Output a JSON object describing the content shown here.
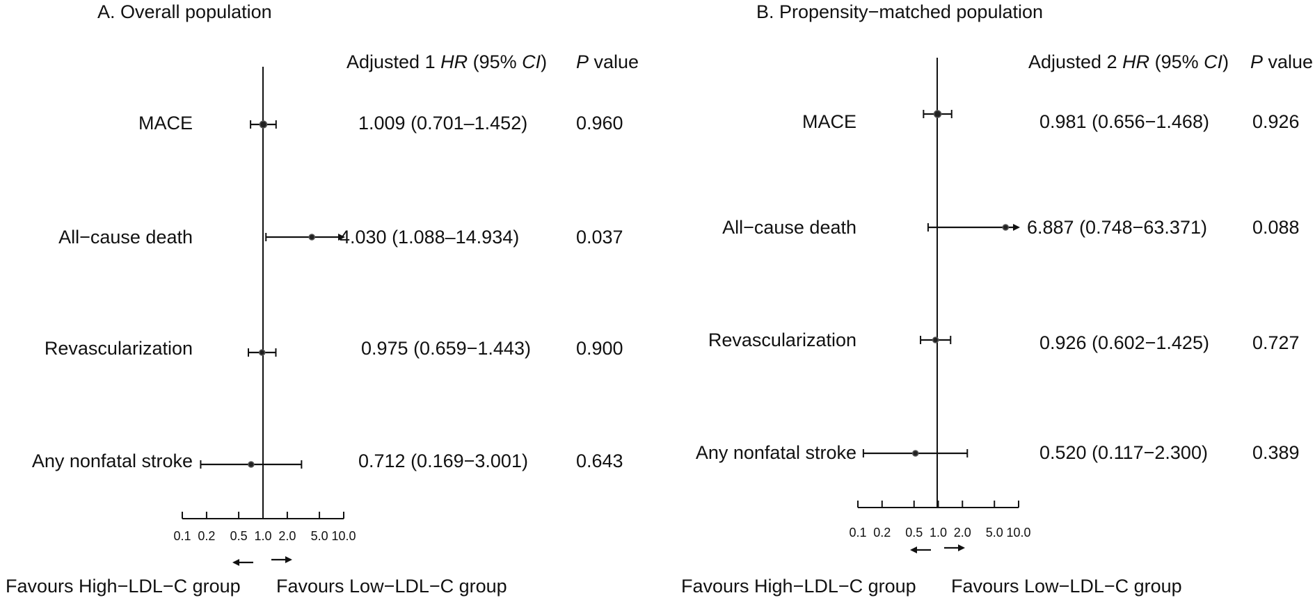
{
  "chart_data": [
    {
      "type": "forest",
      "title": "A. Overall population",
      "header": {
        "estimate_prefix": "Adjusted 1 ",
        "hr": "HR",
        "ci_open": " (95% ",
        "ci": "CI",
        "ci_close": ")",
        "p": "P",
        "p_suffix": " value"
      },
      "xscale": "log",
      "xlim": [
        0.1,
        10.0
      ],
      "ticks": [
        "0.1",
        "0.2",
        "0.5",
        "1.0",
        "2.0",
        "5.0",
        "10.0"
      ],
      "reference_line": 1.0,
      "rows": [
        {
          "label": "MACE",
          "hr": 1.009,
          "lo": 0.701,
          "hi": 1.452,
          "text": "1.009 (0.701–1.452)",
          "p": "0.960"
        },
        {
          "label": "All−cause death",
          "hr": 4.03,
          "lo": 1.088,
          "hi": 14.934,
          "text": "4.030 (1.088–14.934)",
          "p": "0.037"
        },
        {
          "label": "Revascularization",
          "hr": 0.975,
          "lo": 0.659,
          "hi": 1.443,
          "text": "0.975 (0.659−1.443)",
          "p": "0.900"
        },
        {
          "label": "Any nonfatal stroke",
          "hr": 0.712,
          "lo": 0.169,
          "hi": 3.001,
          "text": "0.712 (0.169−3.001)",
          "p": "0.643"
        }
      ],
      "favours_left": "Favours High−LDL−C group",
      "favours_right": "Favours Low−LDL−C group"
    },
    {
      "type": "forest",
      "title": "B. Propensity−matched population",
      "header": {
        "estimate_prefix": "Adjusted 2 ",
        "hr": "HR",
        "ci_open": " (95% ",
        "ci": "CI",
        "ci_close": ")",
        "p": "P",
        "p_suffix": " value"
      },
      "xscale": "log",
      "xlim": [
        0.1,
        10.0
      ],
      "ticks": [
        "0.1",
        "0.2",
        "0.5",
        "1.0",
        "2.0",
        "5.0",
        "10.0"
      ],
      "reference_line": 1.0,
      "rows": [
        {
          "label": "MACE",
          "hr": 0.981,
          "lo": 0.656,
          "hi": 1.468,
          "text": "0.981 (0.656−1.468)",
          "p": "0.926"
        },
        {
          "label": "All−cause death",
          "hr": 6.887,
          "lo": 0.748,
          "hi": 63.371,
          "text": "6.887 (0.748−63.371)",
          "p": "0.088"
        },
        {
          "label": "Revascularization",
          "hr": 0.926,
          "lo": 0.602,
          "hi": 1.425,
          "text": "0.926 (0.602−1.425)",
          "p": "0.727"
        },
        {
          "label": "Any nonfatal stroke",
          "hr": 0.52,
          "lo": 0.117,
          "hi": 2.3,
          "text": "0.520 (0.117−2.300)",
          "p": "0.389"
        }
      ],
      "favours_left": "Favours High−LDL−C group",
      "favours_right": "Favours Low−LDL−C group"
    }
  ]
}
